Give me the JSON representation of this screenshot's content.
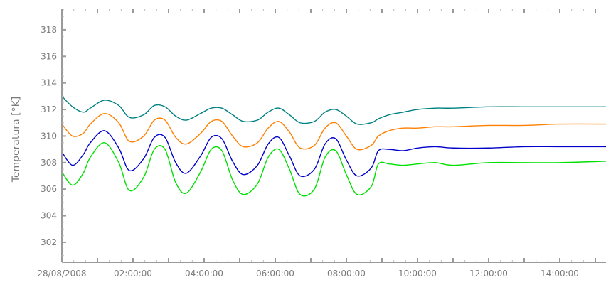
{
  "chart_data": {
    "type": "line",
    "title": "",
    "xlabel": "",
    "ylabel": "Temperatura [°K]",
    "ylim": [
      300.5,
      319.6
    ],
    "xlim": [
      0,
      15.3
    ],
    "yticks": [
      302,
      304,
      306,
      308,
      310,
      312,
      314,
      316,
      318
    ],
    "xticks": [
      {
        "value": 0,
        "label": "28/08/2008"
      },
      {
        "value": 2,
        "label": "02:00:00"
      },
      {
        "value": 4,
        "label": "04:00:00"
      },
      {
        "value": 6,
        "label": "06:00:00"
      },
      {
        "value": 8,
        "label": "08:00:00"
      },
      {
        "value": 10,
        "label": "10:00:00"
      },
      {
        "value": 12,
        "label": "12:00:00"
      },
      {
        "value": 14,
        "label": "14:00:00"
      }
    ],
    "grid": false,
    "legend": "none",
    "series": [
      {
        "color": "#008080",
        "x": [
          0,
          0.3,
          0.6,
          0.8,
          1.2,
          1.6,
          1.9,
          2.3,
          2.6,
          2.9,
          3.2,
          3.5,
          3.9,
          4.2,
          4.5,
          4.8,
          5.1,
          5.5,
          5.8,
          6.1,
          6.4,
          6.7,
          7.1,
          7.4,
          7.7,
          8.0,
          8.3,
          8.7,
          8.9,
          9.2,
          9.6,
          10.0,
          10.5,
          11.0,
          12.0,
          13.0,
          14.0,
          15.3
        ],
        "y": [
          313.0,
          312.2,
          311.8,
          312.1,
          312.7,
          312.3,
          311.4,
          311.6,
          312.3,
          312.2,
          311.5,
          311.2,
          311.7,
          312.1,
          312.1,
          311.6,
          311.1,
          311.2,
          311.8,
          312.1,
          311.6,
          311.0,
          311.1,
          311.8,
          312.0,
          311.5,
          310.9,
          311.0,
          311.3,
          311.6,
          311.8,
          312.0,
          312.1,
          312.1,
          312.2,
          312.2,
          312.2,
          312.2
        ]
      },
      {
        "color": "#ff7f00",
        "x": [
          0,
          0.3,
          0.6,
          0.8,
          1.2,
          1.6,
          1.9,
          2.3,
          2.6,
          2.9,
          3.2,
          3.5,
          3.9,
          4.2,
          4.5,
          4.8,
          5.1,
          5.5,
          5.8,
          6.1,
          6.4,
          6.7,
          7.1,
          7.4,
          7.7,
          8.0,
          8.3,
          8.7,
          8.9,
          9.2,
          9.6,
          10.0,
          10.5,
          11.0,
          12.0,
          13.0,
          14.0,
          15.3
        ],
        "y": [
          310.9,
          310.0,
          310.2,
          310.9,
          311.7,
          311.0,
          309.6,
          310.0,
          311.2,
          311.2,
          309.9,
          309.4,
          310.2,
          311.1,
          311.1,
          310.0,
          309.2,
          309.5,
          310.6,
          311.1,
          310.3,
          309.1,
          309.3,
          310.6,
          311.0,
          310.0,
          309.0,
          309.3,
          310.0,
          310.4,
          310.6,
          310.6,
          310.7,
          310.7,
          310.8,
          310.8,
          310.9,
          310.9
        ]
      },
      {
        "color": "#0000cc",
        "x": [
          0,
          0.3,
          0.6,
          0.8,
          1.2,
          1.6,
          1.9,
          2.3,
          2.6,
          2.9,
          3.2,
          3.5,
          3.9,
          4.2,
          4.5,
          4.8,
          5.1,
          5.5,
          5.8,
          6.1,
          6.4,
          6.7,
          7.1,
          7.4,
          7.7,
          8.0,
          8.3,
          8.7,
          8.9,
          9.2,
          9.6,
          10.0,
          10.5,
          11.0,
          12.0,
          13.0,
          14.0,
          15.3
        ],
        "y": [
          308.8,
          307.8,
          308.6,
          309.5,
          310.4,
          309.1,
          307.4,
          308.3,
          309.9,
          309.9,
          308.0,
          307.2,
          308.5,
          309.9,
          309.8,
          308.1,
          307.1,
          307.8,
          309.4,
          309.9,
          308.5,
          307.0,
          307.5,
          309.4,
          309.8,
          308.2,
          307.0,
          307.6,
          308.9,
          309.0,
          308.9,
          309.1,
          309.2,
          309.1,
          309.1,
          309.2,
          309.2,
          309.2
        ]
      },
      {
        "color": "#00e000",
        "x": [
          0,
          0.3,
          0.6,
          0.8,
          1.2,
          1.6,
          1.9,
          2.3,
          2.6,
          2.9,
          3.2,
          3.5,
          3.9,
          4.2,
          4.5,
          4.8,
          5.1,
          5.5,
          5.8,
          6.1,
          6.4,
          6.7,
          7.1,
          7.4,
          7.7,
          8.0,
          8.3,
          8.7,
          8.9,
          9.2,
          9.6,
          10.0,
          10.5,
          11.0,
          12.0,
          13.0,
          14.0,
          15.3
        ],
        "y": [
          307.3,
          306.3,
          307.2,
          308.4,
          309.5,
          308.0,
          305.9,
          306.9,
          309.0,
          309.0,
          306.5,
          305.7,
          307.3,
          309.0,
          308.9,
          306.7,
          305.6,
          306.4,
          308.4,
          309.0,
          307.5,
          305.6,
          306.0,
          308.4,
          308.9,
          307.1,
          305.6,
          306.2,
          307.9,
          307.9,
          307.8,
          307.9,
          308.0,
          307.8,
          308.0,
          308.0,
          308.0,
          308.1
        ]
      }
    ]
  }
}
